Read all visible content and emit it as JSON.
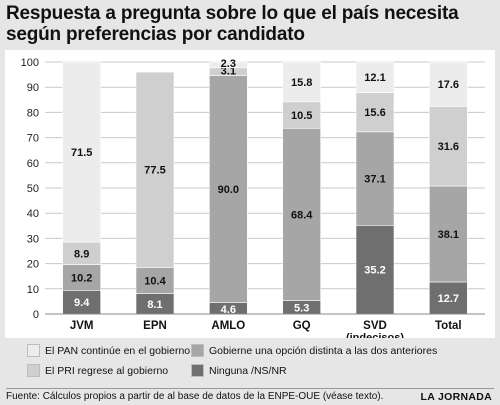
{
  "title": "Respuesta a pregunta sobre lo que el país necesita según preferencias por candidato",
  "chart_data": {
    "type": "bar",
    "stacked": true,
    "categories": [
      "JVM",
      "EPN",
      "AMLO",
      "GQ",
      "SVD",
      "Total"
    ],
    "category_sublabels": [
      "",
      "",
      "",
      "",
      "(indecisos)",
      ""
    ],
    "ylim": [
      0,
      100
    ],
    "yticks": [
      0,
      10,
      20,
      30,
      40,
      50,
      60,
      70,
      80,
      90,
      100
    ],
    "grid": "horizontal",
    "series": [
      {
        "name": "Ninguna /NS/NR",
        "color": "#6f6f6f",
        "label_color": "#ffffff",
        "values": [
          9.4,
          8.1,
          4.6,
          5.3,
          35.2,
          12.7
        ]
      },
      {
        "name": "Gobierne una opción distinta a las dos anteriores",
        "color": "#a6a6a6",
        "label_color": "#111111",
        "values": [
          10.2,
          10.4,
          90.0,
          68.4,
          37.1,
          38.1
        ]
      },
      {
        "name": "El PRI regrese al gobierno",
        "color": "#cfcfcf",
        "label_color": "#111111",
        "values": [
          8.9,
          77.5,
          3.1,
          10.5,
          15.6,
          31.6
        ]
      },
      {
        "name": "El PAN continúe en el gobierno",
        "color": "#ececec",
        "label_color": "#111111",
        "values": [
          71.5,
          0,
          2.3,
          15.8,
          12.1,
          17.6
        ]
      }
    ],
    "data_labels": [
      [
        "9.4",
        "10.2",
        "8.9",
        "71.5"
      ],
      [
        "8.1",
        "10.4",
        "77.5",
        ""
      ],
      [
        "4.6",
        "90.0",
        "3.1",
        "2.3"
      ],
      [
        "5.3",
        "68.4",
        "10.5",
        "15.8"
      ],
      [
        "35.2",
        "37.1",
        "15.6",
        "12.1"
      ],
      [
        "12.7",
        "38.1",
        "31.6",
        "17.6"
      ]
    ]
  },
  "legend": [
    {
      "label": "El PAN continúe en el gobierno",
      "color": "#ececec"
    },
    {
      "label": "Gobierne una opción distinta a las dos anteriores",
      "color": "#a6a6a6"
    },
    {
      "label": "El PRI regrese al gobierno",
      "color": "#cfcfcf"
    },
    {
      "label": "Ninguna /NS/NR",
      "color": "#6f6f6f"
    }
  ],
  "source": "Fuente: Cálculos propios a partir de al base de datos de la ENPE-OUE (véase texto).",
  "brand": "LA JORNADA"
}
